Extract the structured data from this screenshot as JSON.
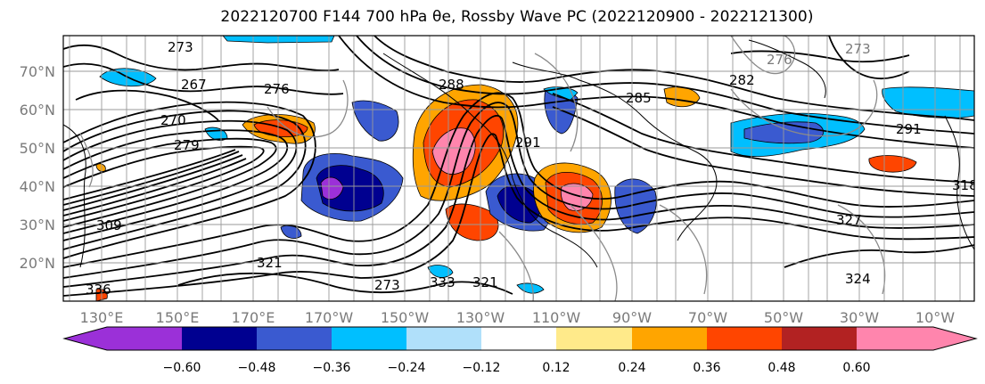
{
  "title": "2022120700 F144 700 hPa θe, Rossby Wave PC (2022120900 - 2022121300)",
  "lat_labels": [
    "70°N",
    "60°N",
    "50°N",
    "40°N",
    "30°N",
    "20°N"
  ],
  "lon_labels": [
    "130°E",
    "150°E",
    "170°E",
    "170°W",
    "150°W",
    "130°W",
    "110°W",
    "90°W",
    "70°W",
    "50°W",
    "30°W",
    "10°W"
  ],
  "colorbar": {
    "colors": [
      "#9b30d8",
      "#000090",
      "#3a5ad0",
      "#00bfff",
      "#b0e0fa",
      "#ffffff",
      "#ffea8a",
      "#ffa500",
      "#ff4500",
      "#b22222",
      "#ff85ad"
    ],
    "ticks": [
      "−0.60",
      "−0.48",
      "−0.36",
      "−0.24",
      "−0.12",
      "0.12",
      "0.24",
      "0.36",
      "0.48",
      "0.60"
    ]
  },
  "contour_labels": [
    "273",
    "267",
    "270",
    "276",
    "279",
    "285",
    "288",
    "309",
    "282",
    "291",
    "276",
    "273",
    "273",
    "318",
    "324",
    "327",
    "321",
    "333",
    "336",
    "321",
    "291"
  ]
}
